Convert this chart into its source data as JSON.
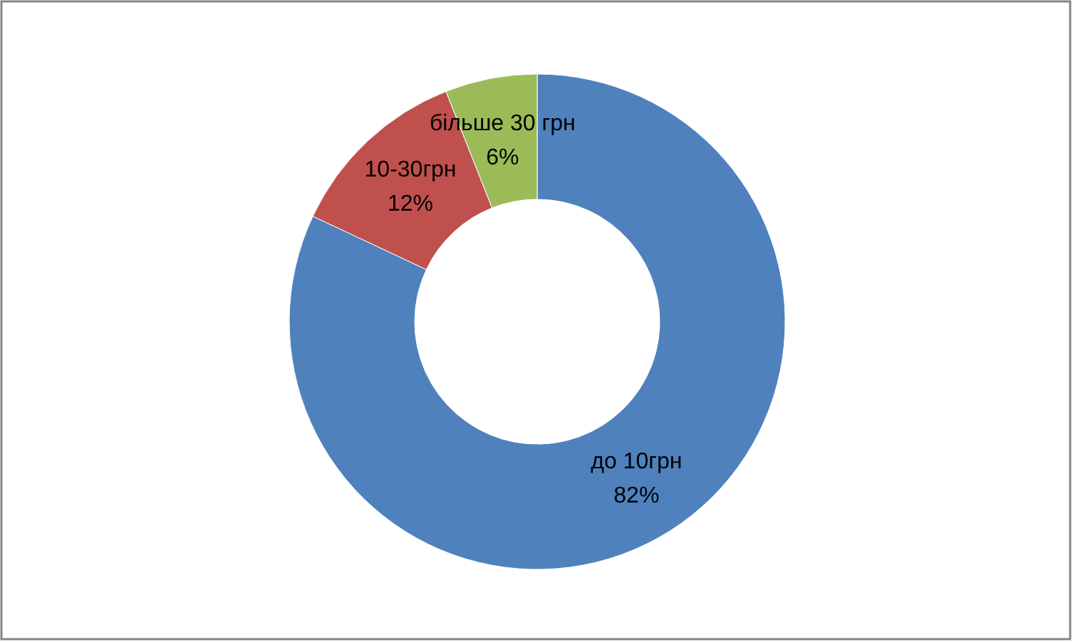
{
  "chart_data": {
    "type": "donut",
    "categories": [
      "до 10грн",
      "10-30грн",
      "більше 30 грн"
    ],
    "values": [
      82,
      12,
      6
    ],
    "value_labels": [
      "82%",
      "12%",
      "6%"
    ],
    "colors": [
      "#4f81bd",
      "#c0504d",
      "#9bbb59"
    ]
  }
}
